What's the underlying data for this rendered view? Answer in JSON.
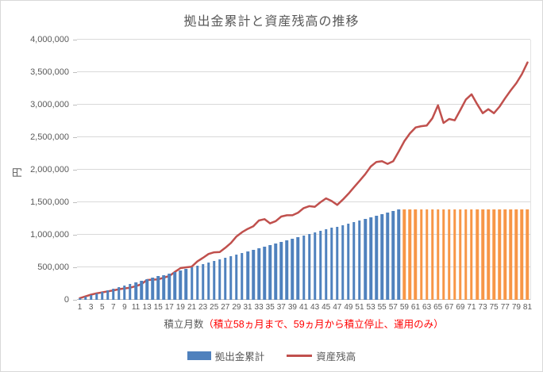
{
  "title": "拠出金累計と資産残高の推移",
  "y_axis": {
    "title": "円",
    "tick_labels": [
      "0",
      "500,000",
      "1,000,000",
      "1,500,000",
      "2,000,000",
      "2,500,000",
      "3,000,000",
      "3,500,000",
      "4,000,000"
    ]
  },
  "x_axis": {
    "label_gray": "積立月数",
    "label_red": "（積立58ヵ月まで、59ヵ月から積立停止、運用のみ）",
    "tick_labels": [
      1,
      3,
      5,
      7,
      9,
      11,
      13,
      15,
      17,
      19,
      21,
      23,
      25,
      27,
      29,
      31,
      33,
      35,
      37,
      39,
      41,
      43,
      45,
      47,
      49,
      51,
      53,
      55,
      57,
      59,
      61,
      63,
      65,
      67,
      69,
      71,
      73,
      75,
      77,
      79,
      81
    ]
  },
  "legend": {
    "items": [
      {
        "label": "拠出金累計",
        "type": "bar",
        "color": "#4F81BD"
      },
      {
        "label": "資産残高",
        "type": "line",
        "color": "#C0504D"
      }
    ]
  },
  "colors": {
    "bar_contribution": "#4F81BD",
    "bar_stopped": "#F79646",
    "line_balance": "#C0504D",
    "grid": "#D9D9D9",
    "axis": "#BFBFBF",
    "text": "#595959",
    "red_text": "#FF0000",
    "border": "#D9D9D9"
  },
  "chart_data": {
    "type": "combo",
    "title": "拠出金累計と資産残高の推移",
    "ylabel": "円",
    "xlabel": "積立月数（積立58ヵ月まで、59ヵ月から積立停止、運用のみ）",
    "ylim": [
      0,
      4000000
    ],
    "ytick_step": 500000,
    "ytick_labels": [
      "0",
      "500,000",
      "1,000,000",
      "1,500,000",
      "2,000,000",
      "2,500,000",
      "3,000,000",
      "3,500,000",
      "4,000,000"
    ],
    "xtick_labels": [
      1,
      3,
      5,
      7,
      9,
      11,
      13,
      15,
      17,
      19,
      21,
      23,
      25,
      27,
      29,
      31,
      33,
      35,
      37,
      39,
      41,
      43,
      45,
      47,
      49,
      51,
      53,
      55,
      57,
      59,
      61,
      63,
      65,
      67,
      69,
      71,
      73,
      75,
      77,
      79,
      81
    ],
    "x_months": 81,
    "legend_position": "bottom",
    "grid": "horizontal",
    "series": [
      {
        "name": "拠出金累計",
        "type": "bar",
        "color_active": "#4F81BD",
        "color_stopped": "#F79646",
        "stop_month": 58,
        "monthly_contribution": 24000,
        "values": [
          24000,
          48000,
          72000,
          96000,
          120000,
          144000,
          168000,
          192000,
          216000,
          240000,
          264000,
          288000,
          312000,
          336000,
          360000,
          384000,
          408000,
          432000,
          456000,
          480000,
          504000,
          528000,
          552000,
          576000,
          600000,
          624000,
          648000,
          672000,
          696000,
          720000,
          744000,
          768000,
          792000,
          816000,
          840000,
          864000,
          888000,
          912000,
          936000,
          960000,
          984000,
          1008000,
          1032000,
          1056000,
          1080000,
          1104000,
          1128000,
          1152000,
          1176000,
          1200000,
          1224000,
          1248000,
          1272000,
          1296000,
          1320000,
          1344000,
          1368000,
          1392000,
          1392000,
          1392000,
          1392000,
          1392000,
          1392000,
          1392000,
          1392000,
          1392000,
          1392000,
          1392000,
          1392000,
          1392000,
          1392000,
          1392000,
          1392000,
          1392000,
          1392000,
          1392000,
          1392000,
          1392000,
          1392000,
          1392000,
          1392000
        ]
      },
      {
        "name": "資産残高",
        "type": "line",
        "color": "#C0504D",
        "values": [
          25000,
          52000,
          79000,
          100000,
          115000,
          130000,
          145000,
          163000,
          175000,
          187000,
          210000,
          240000,
          305000,
          310000,
          315000,
          340000,
          366000,
          430000,
          488000,
          500000,
          510000,
          590000,
          645000,
          705000,
          730000,
          735000,
          800000,
          875000,
          975000,
          1040000,
          1090000,
          1130000,
          1220000,
          1240000,
          1175000,
          1210000,
          1280000,
          1300000,
          1300000,
          1340000,
          1410000,
          1440000,
          1430000,
          1500000,
          1560000,
          1520000,
          1460000,
          1540000,
          1630000,
          1730000,
          1830000,
          1930000,
          2050000,
          2120000,
          2130000,
          2090000,
          2130000,
          2280000,
          2440000,
          2560000,
          2650000,
          2670000,
          2680000,
          2790000,
          2990000,
          2720000,
          2780000,
          2760000,
          2920000,
          3080000,
          3160000,
          3010000,
          2870000,
          2930000,
          2870000,
          2970000,
          3100000,
          3220000,
          3330000,
          3470000,
          3650000
        ]
      }
    ]
  }
}
